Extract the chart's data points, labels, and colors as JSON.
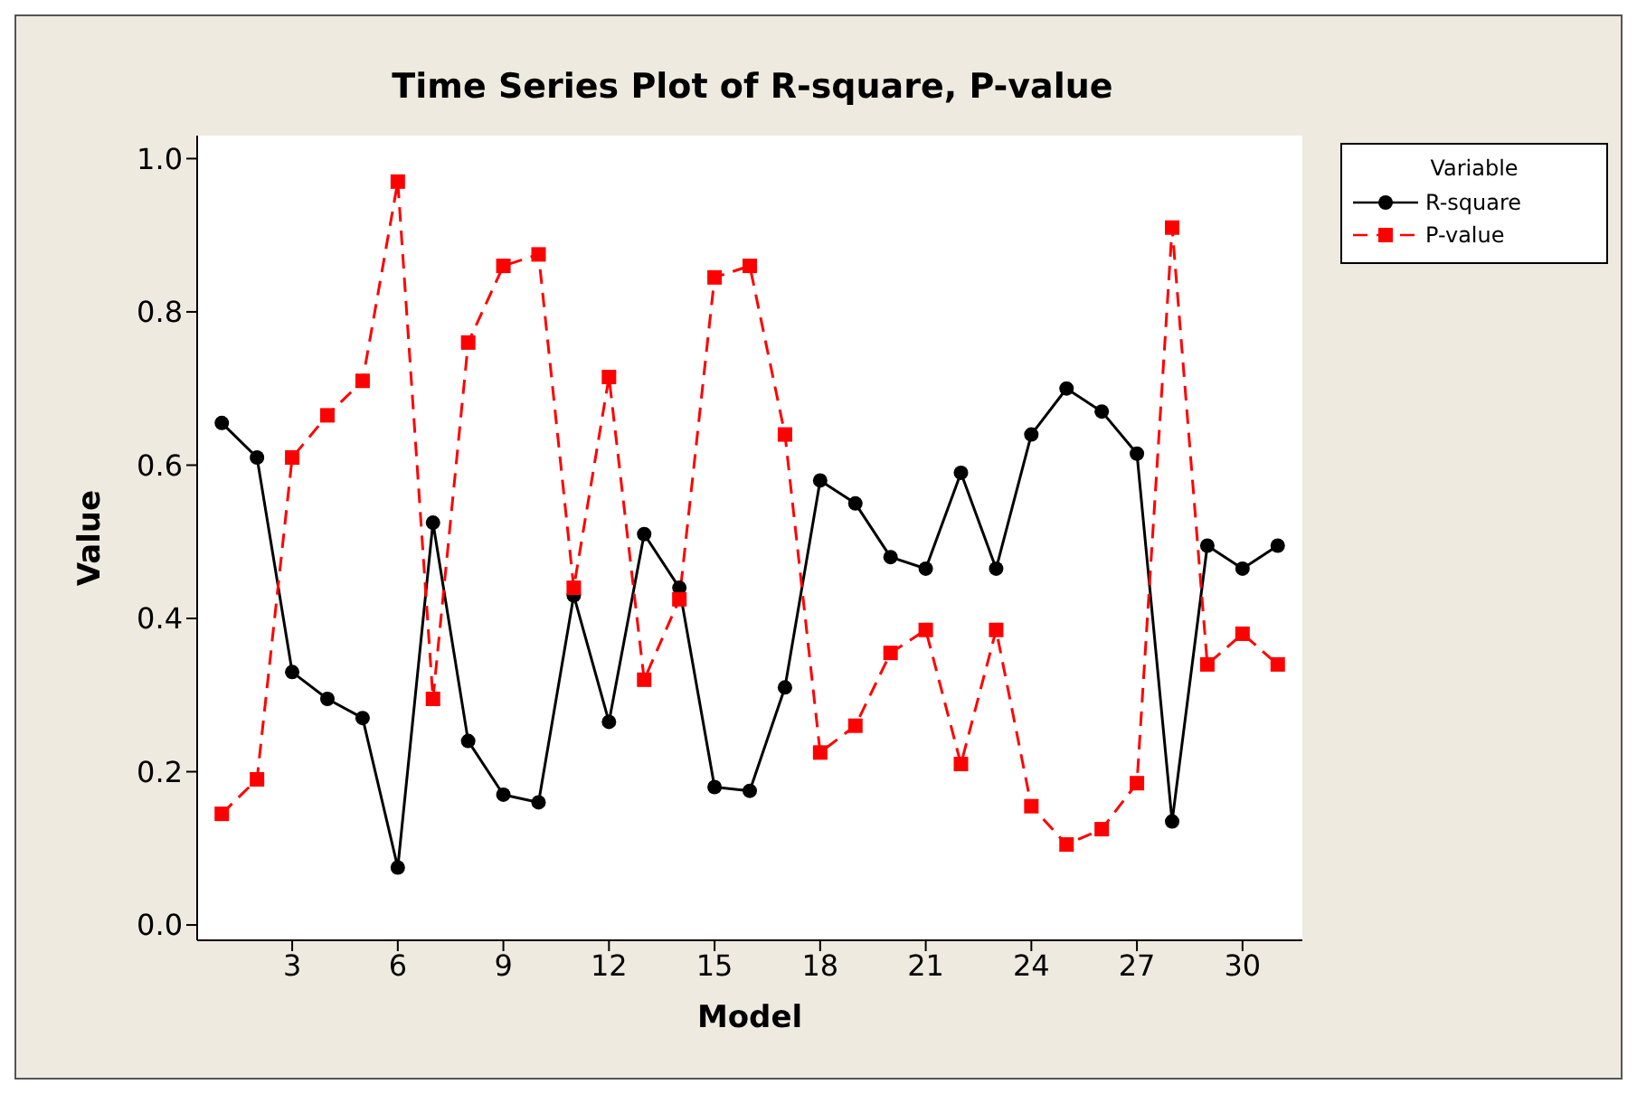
{
  "chart_data": {
    "type": "line",
    "title": "Time Series Plot of R-square, P-value",
    "xlabel": "Model",
    "ylabel": "Value",
    "legend_title": "Variable",
    "legend": "right",
    "x": [
      1,
      2,
      3,
      4,
      5,
      6,
      7,
      8,
      9,
      10,
      11,
      12,
      13,
      14,
      15,
      16,
      17,
      18,
      19,
      20,
      21,
      22,
      23,
      24,
      25,
      26,
      27,
      28,
      29,
      30,
      31
    ],
    "xlim": [
      0.3,
      31.7
    ],
    "xticks": [
      3,
      6,
      9,
      12,
      15,
      18,
      21,
      24,
      27,
      30
    ],
    "ylim": [
      -0.02,
      1.03
    ],
    "yticks": [
      {
        "value": 0,
        "label": "0.0"
      },
      0.2,
      0.4,
      0.6,
      0.8,
      {
        "value": 1,
        "label": "1.0"
      }
    ],
    "grid": false,
    "series": [
      {
        "name": "R-square",
        "color": "#000000",
        "marker": "circle",
        "line_style": "solid",
        "values": [
          0.655,
          0.61,
          0.33,
          0.295,
          0.27,
          0.075,
          0.525,
          0.24,
          0.17,
          0.16,
          0.43,
          0.265,
          0.51,
          0.44,
          0.18,
          0.175,
          0.31,
          0.58,
          0.55,
          0.48,
          0.465,
          0.59,
          0.465,
          0.64,
          0.7,
          0.67,
          0.615,
          0.135,
          0.495,
          0.465,
          0.495
        ]
      },
      {
        "name": "P-value",
        "color": "#ff0000",
        "marker": "square",
        "line_style": "dashed",
        "values": [
          0.145,
          0.19,
          0.61,
          0.665,
          0.71,
          0.97,
          0.295,
          0.76,
          0.86,
          0.875,
          0.44,
          0.715,
          0.32,
          0.425,
          0.845,
          0.86,
          0.64,
          0.225,
          0.26,
          0.355,
          0.385,
          0.21,
          0.385,
          0.155,
          0.105,
          0.125,
          0.185,
          0.91,
          0.34,
          0.38,
          0.34
        ]
      }
    ]
  }
}
